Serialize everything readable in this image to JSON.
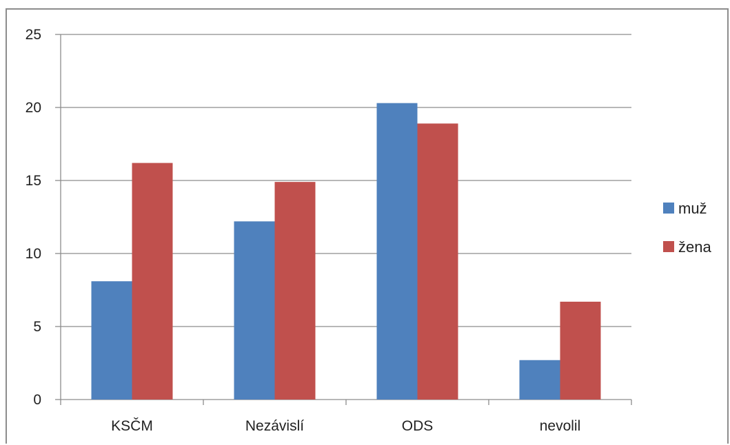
{
  "chart_data": {
    "type": "bar",
    "title": "",
    "xlabel": "",
    "ylabel": "",
    "categories": [
      "KSČM",
      "Nezávislí",
      "ODS",
      "nevolil"
    ],
    "series": [
      {
        "name": "muž",
        "color": "#4F81BD",
        "values": [
          8.1,
          12.2,
          20.3,
          2.7
        ]
      },
      {
        "name": "žena",
        "color": "#C0504D",
        "values": [
          16.2,
          14.9,
          18.9,
          6.7
        ]
      }
    ],
    "ylim": [
      0,
      25
    ],
    "yticks": [
      "0",
      "5",
      "10",
      "15",
      "20",
      "25"
    ],
    "grid": true,
    "legend_position": "right"
  }
}
